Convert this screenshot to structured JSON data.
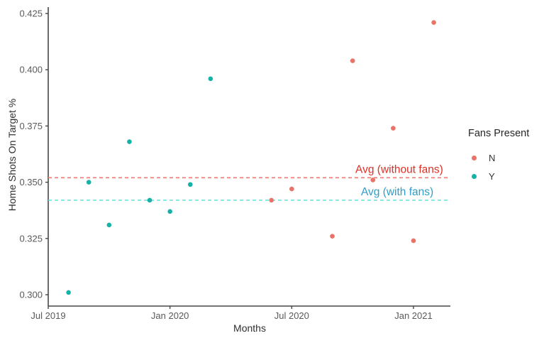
{
  "chart_data": {
    "type": "scatter",
    "title": "",
    "xlabel": "Months",
    "ylabel": "Home Shots On Target %",
    "x_unit": "months_since_jul_2019",
    "xlim": [
      0,
      19.8
    ],
    "ylim": [
      0.295,
      0.428
    ],
    "grid": false,
    "x_ticks": [
      {
        "label": "Jul 2019",
        "month": 0
      },
      {
        "label": "Jan 2020",
        "month": 6
      },
      {
        "label": "Jul 2020",
        "month": 12
      },
      {
        "label": "Jan 2021",
        "month": 18
      }
    ],
    "y_ticks": [
      0.3,
      0.325,
      0.35,
      0.375,
      0.4,
      0.425
    ],
    "legend": {
      "title": "Fans Present",
      "position": "right",
      "entries": [
        {
          "label": "N",
          "color": "#ea7368"
        },
        {
          "label": "Y",
          "color": "#16b2a7"
        }
      ]
    },
    "series": [
      {
        "name": "N",
        "color": "#ea7368",
        "points": [
          {
            "month_label": "Jun 2020",
            "month": 11,
            "value": 0.342
          },
          {
            "month_label": "Jul 2020",
            "month": 12,
            "value": 0.347
          },
          {
            "month_label": "Sep 2020",
            "month": 14,
            "value": 0.326
          },
          {
            "month_label": "Oct 2020",
            "month": 15,
            "value": 0.404
          },
          {
            "month_label": "Nov 2020",
            "month": 16,
            "value": 0.351
          },
          {
            "month_label": "Dec 2020",
            "month": 17,
            "value": 0.374
          },
          {
            "month_label": "Jan 2021",
            "month": 18,
            "value": 0.324
          },
          {
            "month_label": "Feb 2021",
            "month": 19,
            "value": 0.421
          }
        ]
      },
      {
        "name": "Y",
        "color": "#16b2a7",
        "points": [
          {
            "month_label": "Aug 2019",
            "month": 1,
            "value": 0.301
          },
          {
            "month_label": "Sep 2019",
            "month": 2,
            "value": 0.35
          },
          {
            "month_label": "Oct 2019",
            "month": 3,
            "value": 0.331
          },
          {
            "month_label": "Nov 2019",
            "month": 4,
            "value": 0.368
          },
          {
            "month_label": "Dec 2019",
            "month": 5,
            "value": 0.342
          },
          {
            "month_label": "Jan 2020",
            "month": 6,
            "value": 0.337
          },
          {
            "month_label": "Feb 2020",
            "month": 7,
            "value": 0.349
          },
          {
            "month_label": "Mar 2020",
            "month": 8,
            "value": 0.396
          }
        ]
      }
    ],
    "reference_lines": [
      {
        "id": "avg_without_fans",
        "value": 0.352,
        "line_color": "#f0827a",
        "style": "dashed",
        "annotation_text": "Avg (without fans)",
        "annotation_color": "#df3026",
        "annotation_month": 17.3
      },
      {
        "id": "avg_with_fans",
        "value": 0.342,
        "line_color": "#70e4dc",
        "style": "dashed",
        "annotation_text": "Avg (with fans)",
        "annotation_color": "#2d9eca",
        "annotation_month": 17.2
      }
    ]
  }
}
